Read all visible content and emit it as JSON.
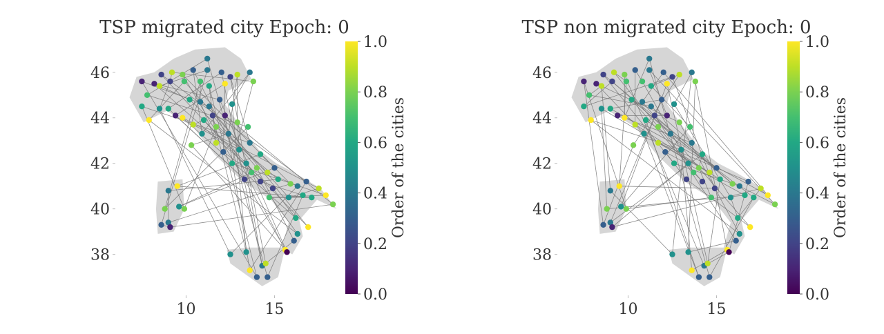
{
  "colorbar": {
    "label": "Order of the cities",
    "ticks": [
      "0.0",
      "0.2",
      "0.4",
      "0.6",
      "0.8",
      "1.0"
    ],
    "colormap": "viridis"
  },
  "chart_data": [
    {
      "type": "scatter",
      "title": "TSP migrated city Epoch: 0",
      "xlabel": "",
      "ylabel": "",
      "xticks": [
        10,
        15
      ],
      "yticks": [
        38,
        40,
        42,
        44,
        46
      ],
      "xlim": [
        6,
        19
      ],
      "ylim": [
        36.2,
        47.6
      ],
      "grid": false,
      "region_outline": [
        [
          7.2,
          45.8
        ],
        [
          8.2,
          46.0
        ],
        [
          9.3,
          46.6
        ],
        [
          10.5,
          47.0
        ],
        [
          12.2,
          47.1
        ],
        [
          13.1,
          46.6
        ],
        [
          13.7,
          45.7
        ],
        [
          12.4,
          45.2
        ],
        [
          12.2,
          44.6
        ],
        [
          13.1,
          43.6
        ],
        [
          14.1,
          42.6
        ],
        [
          15.1,
          42.0
        ],
        [
          16.1,
          41.6
        ],
        [
          17.6,
          40.9
        ],
        [
          18.5,
          40.0
        ],
        [
          17.4,
          40.4
        ],
        [
          16.4,
          39.5
        ],
        [
          16.6,
          38.8
        ],
        [
          16.0,
          38.0
        ],
        [
          15.4,
          38.3
        ],
        [
          15.8,
          39.4
        ],
        [
          14.8,
          40.4
        ],
        [
          13.2,
          41.2
        ],
        [
          11.6,
          42.4
        ],
        [
          10.4,
          43.6
        ],
        [
          8.9,
          44.3
        ],
        [
          7.6,
          43.8
        ],
        [
          6.8,
          44.9
        ],
        [
          7.2,
          45.8
        ]
      ],
      "points": [
        {
          "x": 7.5,
          "y": 45.6,
          "order": 0.1
        },
        {
          "x": 8.2,
          "y": 45.5,
          "order": 0.05
        },
        {
          "x": 8.6,
          "y": 45.9,
          "order": 0.15
        },
        {
          "x": 9.2,
          "y": 46.0,
          "order": 0.85
        },
        {
          "x": 9.8,
          "y": 45.9,
          "order": 0.75
        },
        {
          "x": 10.4,
          "y": 46.1,
          "order": 0.3
        },
        {
          "x": 11.2,
          "y": 46.6,
          "order": 0.35
        },
        {
          "x": 11.2,
          "y": 46.1,
          "order": 0.4
        },
        {
          "x": 12.0,
          "y": 46.0,
          "order": 0.3
        },
        {
          "x": 12.5,
          "y": 45.8,
          "order": 0.2
        },
        {
          "x": 12.9,
          "y": 45.9,
          "order": 0.9
        },
        {
          "x": 13.6,
          "y": 46.0,
          "order": 0.35
        },
        {
          "x": 13.8,
          "y": 45.6,
          "order": 0.8
        },
        {
          "x": 12.2,
          "y": 45.5,
          "order": 0.95
        },
        {
          "x": 11.3,
          "y": 45.4,
          "order": 0.55
        },
        {
          "x": 10.8,
          "y": 45.6,
          "order": 0.65
        },
        {
          "x": 9.9,
          "y": 45.6,
          "order": 0.7
        },
        {
          "x": 9.1,
          "y": 45.6,
          "order": 0.2
        },
        {
          "x": 8.5,
          "y": 45.4,
          "order": 0.9
        },
        {
          "x": 7.8,
          "y": 45.0,
          "order": 0.7
        },
        {
          "x": 7.5,
          "y": 44.5,
          "order": 0.55
        },
        {
          "x": 7.9,
          "y": 43.9,
          "order": 0.95
        },
        {
          "x": 8.5,
          "y": 44.4,
          "order": 0.45
        },
        {
          "x": 9.0,
          "y": 44.4,
          "order": 0.55
        },
        {
          "x": 9.4,
          "y": 44.1,
          "order": 0.05
        },
        {
          "x": 9.8,
          "y": 44.0,
          "order": 0.95
        },
        {
          "x": 10.2,
          "y": 44.8,
          "order": 0.6
        },
        {
          "x": 10.8,
          "y": 44.7,
          "order": 0.4
        },
        {
          "x": 11.3,
          "y": 44.5,
          "order": 0.35
        },
        {
          "x": 11.9,
          "y": 44.8,
          "order": 0.25
        },
        {
          "x": 12.2,
          "y": 44.1,
          "order": 0.1
        },
        {
          "x": 11.0,
          "y": 43.9,
          "order": 0.6
        },
        {
          "x": 10.4,
          "y": 43.7,
          "order": 0.9
        },
        {
          "x": 10.9,
          "y": 43.3,
          "order": 0.45
        },
        {
          "x": 11.7,
          "y": 43.6,
          "order": 0.75
        },
        {
          "x": 12.4,
          "y": 43.3,
          "order": 0.4
        },
        {
          "x": 12.9,
          "y": 43.8,
          "order": 0.8
        },
        {
          "x": 13.5,
          "y": 43.6,
          "order": 0.65
        },
        {
          "x": 13.6,
          "y": 42.9,
          "order": 0.35
        },
        {
          "x": 13.0,
          "y": 42.6,
          "order": 0.5
        },
        {
          "x": 12.1,
          "y": 42.5,
          "order": 0.25
        },
        {
          "x": 11.7,
          "y": 42.9,
          "order": 0.85
        },
        {
          "x": 12.6,
          "y": 42.0,
          "order": 0.55
        },
        {
          "x": 13.4,
          "y": 42.0,
          "order": 0.45
        },
        {
          "x": 14.2,
          "y": 42.4,
          "order": 0.6
        },
        {
          "x": 14.0,
          "y": 41.8,
          "order": 0.8
        },
        {
          "x": 13.7,
          "y": 41.6,
          "order": 0.7
        },
        {
          "x": 13.3,
          "y": 41.3,
          "order": 0.2
        },
        {
          "x": 14.2,
          "y": 41.2,
          "order": 0.15
        },
        {
          "x": 14.6,
          "y": 41.6,
          "order": 0.85
        },
        {
          "x": 15.0,
          "y": 41.8,
          "order": 0.25
        },
        {
          "x": 15.2,
          "y": 41.3,
          "order": 0.55
        },
        {
          "x": 15.9,
          "y": 41.1,
          "order": 0.75
        },
        {
          "x": 16.3,
          "y": 41.0,
          "order": 0.4
        },
        {
          "x": 16.8,
          "y": 41.2,
          "order": 0.3
        },
        {
          "x": 17.5,
          "y": 40.9,
          "order": 0.85
        },
        {
          "x": 17.9,
          "y": 40.6,
          "order": 0.95
        },
        {
          "x": 18.3,
          "y": 40.2,
          "order": 0.8
        },
        {
          "x": 17.1,
          "y": 40.5,
          "order": 0.6
        },
        {
          "x": 16.6,
          "y": 40.6,
          "order": 0.55
        },
        {
          "x": 15.8,
          "y": 40.5,
          "order": 0.5
        },
        {
          "x": 14.9,
          "y": 40.9,
          "order": 0.15
        },
        {
          "x": 14.7,
          "y": 40.5,
          "order": 0.7
        },
        {
          "x": 16.2,
          "y": 39.6,
          "order": 0.6
        },
        {
          "x": 16.9,
          "y": 39.2,
          "order": 0.95
        },
        {
          "x": 16.3,
          "y": 38.9,
          "order": 0.5
        },
        {
          "x": 16.1,
          "y": 38.6,
          "order": 0.25
        },
        {
          "x": 15.6,
          "y": 38.2,
          "order": 0.95
        },
        {
          "x": 15.7,
          "y": 38.1,
          "order": 0.0
        },
        {
          "x": 14.3,
          "y": 37.5,
          "order": 0.4
        },
        {
          "x": 14.5,
          "y": 37.6,
          "order": 0.9
        },
        {
          "x": 13.6,
          "y": 37.3,
          "order": 0.95
        },
        {
          "x": 14.0,
          "y": 37.0,
          "order": 0.3
        },
        {
          "x": 14.6,
          "y": 37.0,
          "order": 0.25
        },
        {
          "x": 13.4,
          "y": 38.1,
          "order": 0.45
        },
        {
          "x": 12.5,
          "y": 38.0,
          "order": 0.5
        },
        {
          "x": 9.0,
          "y": 40.8,
          "order": 0.4
        },
        {
          "x": 9.5,
          "y": 41.0,
          "order": 0.95
        },
        {
          "x": 8.8,
          "y": 40.0,
          "order": 0.75
        },
        {
          "x": 9.6,
          "y": 40.1,
          "order": 0.45
        },
        {
          "x": 9.9,
          "y": 40.0,
          "order": 0.8
        },
        {
          "x": 9.0,
          "y": 39.4,
          "order": 0.35
        },
        {
          "x": 8.6,
          "y": 39.3,
          "order": 0.25
        },
        {
          "x": 9.1,
          "y": 39.2,
          "order": 0.1
        },
        {
          "x": 10.3,
          "y": 42.8,
          "order": 0.75
        },
        {
          "x": 11.5,
          "y": 44.1,
          "order": 0.2
        },
        {
          "x": 12.6,
          "y": 44.6,
          "order": 0.5
        }
      ]
    },
    {
      "type": "scatter",
      "title": "TSP non migrated city Epoch: 0",
      "xlabel": "",
      "ylabel": "",
      "xticks": [
        10,
        15
      ],
      "yticks": [
        38,
        40,
        42,
        44,
        46
      ],
      "xlim": [
        6,
        19
      ],
      "ylim": [
        36.2,
        47.6
      ],
      "grid": false,
      "same_points_as": "TSP migrated city Epoch: 0",
      "tour_seed": 71
    }
  ]
}
